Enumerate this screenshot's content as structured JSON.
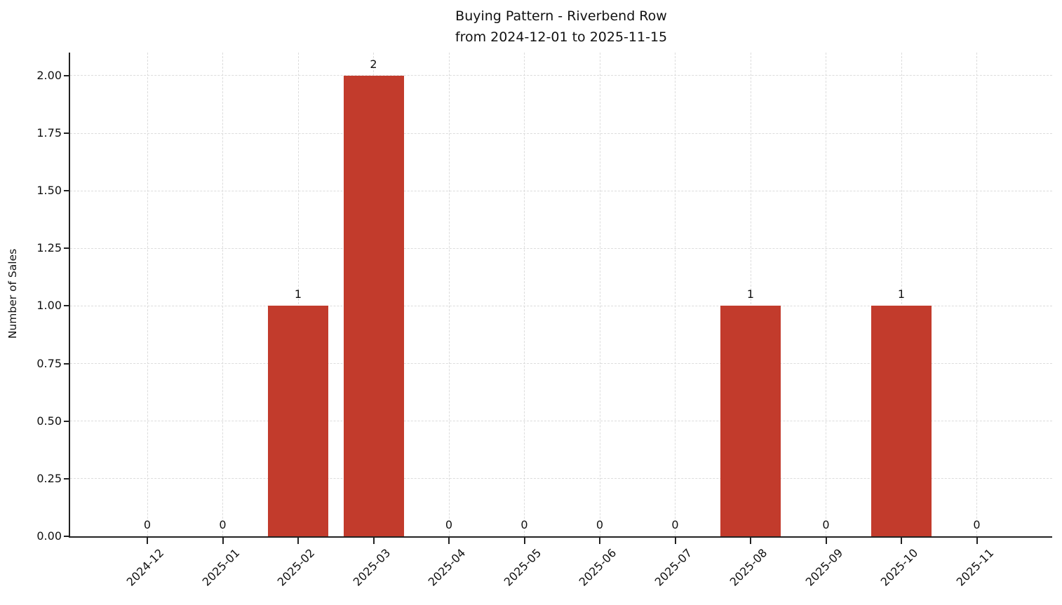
{
  "title": {
    "line1": "Buying Pattern - Riverbend Row",
    "line2": "from 2024-12-01 to 2025-11-15"
  },
  "chart_data": {
    "type": "bar",
    "title": "Buying Pattern - Riverbend Row\nfrom 2024-12-01 to 2025-11-15",
    "categories": [
      "2024-12",
      "2025-01",
      "2025-02",
      "2025-03",
      "2025-04",
      "2025-05",
      "2025-06",
      "2025-07",
      "2025-08",
      "2025-09",
      "2025-10",
      "2025-11"
    ],
    "values": [
      0,
      0,
      1,
      2,
      0,
      0,
      0,
      0,
      1,
      0,
      1,
      0
    ],
    "bar_value_labels": [
      "0",
      "0",
      "1",
      "2",
      "0",
      "0",
      "0",
      "0",
      "1",
      "0",
      "1",
      "0"
    ],
    "xlabel": "",
    "ylabel": "Number of Sales",
    "ylim": [
      0,
      2.1
    ],
    "ytick_values": [
      0,
      0.25,
      0.5,
      0.75,
      1.0,
      1.25,
      1.5,
      1.75,
      2.0
    ],
    "ytick_labels": [
      "0.00",
      "0.25",
      "0.50",
      "0.75",
      "1.00",
      "1.25",
      "1.50",
      "1.75",
      "2.00"
    ],
    "grid": "both-dashed",
    "legend_position": "none",
    "bar_color": "#c23b2c",
    "grid_color": "#dcdcdc",
    "axis_color": "#222222",
    "text_color": "#111111"
  }
}
